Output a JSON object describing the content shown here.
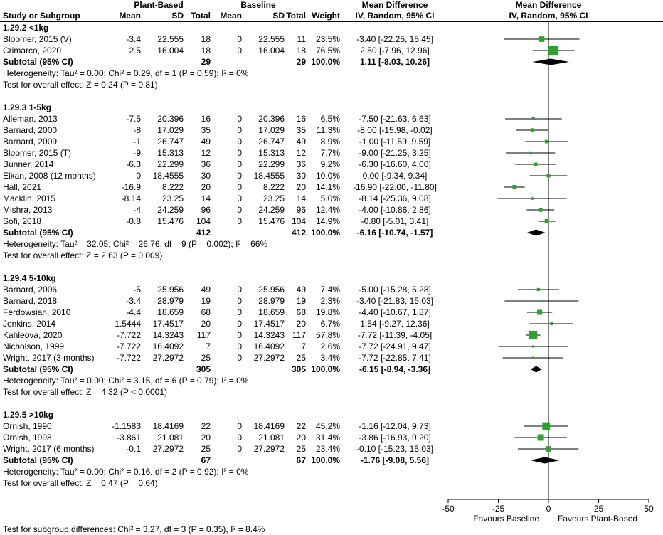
{
  "header": {
    "study": "Study or Subgroup",
    "plant_group": "Plant-Based",
    "baseline_group": "Baseline",
    "mean": "Mean",
    "sd": "SD",
    "total": "Total",
    "weight": "Weight",
    "md": "Mean Difference",
    "ci_method": "IV, Random, 95% CI"
  },
  "colors": {
    "marker": "#2CA32C",
    "diamond": "#000000",
    "line": "#000000"
  },
  "chart_data": {
    "type": "forest",
    "x_axis": {
      "min": -50,
      "max": 50,
      "ticks": [
        -50,
        -25,
        0,
        25,
        50
      ]
    },
    "favours": {
      "left": "Favours Baseline",
      "right": "Favours Plant-Based"
    },
    "footer": "Test for subgroup differences: Chi² = 3.27, df = 3 (P = 0.35), I² = 8.4%",
    "groups": [
      {
        "heading": "1.29.2 <1kg",
        "studies": [
          {
            "study": "Bloomer, 2015 (V)",
            "mean1": "-3.4",
            "sd1": "22.555",
            "total1": "18",
            "mean2": "0",
            "sd2": "22.555",
            "total2": "11",
            "weight": "23.5%",
            "ci": "-3.40 [-22.25, 15.45]",
            "effect": -3.4,
            "low": -22.25,
            "high": 15.45
          },
          {
            "study": "Crimarco, 2020",
            "mean1": "2.5",
            "sd1": "16.004",
            "total1": "18",
            "mean2": "0",
            "sd2": "16.004",
            "total2": "18",
            "weight": "76.5%",
            "ci": "2.50 [-7.96, 12.96]",
            "effect": 2.5,
            "low": -7.96,
            "high": 12.96
          }
        ],
        "subtotal": {
          "label": "Subtotal (95% CI)",
          "total1": "29",
          "total2": "29",
          "weight": "100.0%",
          "ci": "1.11 [-8.03, 10.26]",
          "effect": 1.11,
          "low": -8.03,
          "high": 10.26
        },
        "heterogeneity": "Heterogeneity: Tau² = 0.00; Chi² = 0.29, df = 1 (P = 0.59); I² = 0%",
        "overall": "Test for overall effect: Z = 0.24 (P = 0.81)"
      },
      {
        "heading": "1.29.3 1-5kg",
        "studies": [
          {
            "study": "Alleman, 2013",
            "mean1": "-7.5",
            "sd1": "20.396",
            "total1": "16",
            "mean2": "0",
            "sd2": "20.396",
            "total2": "16",
            "weight": "6.5%",
            "ci": "-7.50 [-21.63, 6.63]",
            "effect": -7.5,
            "low": -21.63,
            "high": 6.63
          },
          {
            "study": "Barnard, 2000",
            "mean1": "-8",
            "sd1": "17.029",
            "total1": "35",
            "mean2": "0",
            "sd2": "17.029",
            "total2": "35",
            "weight": "11.3%",
            "ci": "-8.00 [-15.98, -0.02]",
            "effect": -8,
            "low": -15.98,
            "high": -0.02
          },
          {
            "study": "Barnard, 2009",
            "mean1": "-1",
            "sd1": "26.747",
            "total1": "49",
            "mean2": "0",
            "sd2": "26.747",
            "total2": "49",
            "weight": "8.9%",
            "ci": "-1.00 [-11.59, 9.59]",
            "effect": -1,
            "low": -11.59,
            "high": 9.59
          },
          {
            "study": "Bloomer, 2015 (T)",
            "mean1": "-9",
            "sd1": "15.313",
            "total1": "12",
            "mean2": "0",
            "sd2": "15.313",
            "total2": "12",
            "weight": "7.7%",
            "ci": "-9.00 [-21.25, 3.25]",
            "effect": -9,
            "low": -21.25,
            "high": 3.25
          },
          {
            "study": "Bunner, 2014",
            "mean1": "-6.3",
            "sd1": "22.299",
            "total1": "36",
            "mean2": "0",
            "sd2": "22.299",
            "total2": "36",
            "weight": "9.2%",
            "ci": "-6.30 [-16.60, 4.00]",
            "effect": -6.3,
            "low": -16.6,
            "high": 4
          },
          {
            "study": "Elkan, 2008 (12 months)",
            "mean1": "0",
            "sd1": "18.4555",
            "total1": "30",
            "mean2": "0",
            "sd2": "18.4555",
            "total2": "30",
            "weight": "10.0%",
            "ci": "0.00 [-9.34, 9.34]",
            "effect": 0,
            "low": -9.34,
            "high": 9.34
          },
          {
            "study": "Hall, 2021",
            "mean1": "-16.9",
            "sd1": "8.222",
            "total1": "20",
            "mean2": "0",
            "sd2": "8.222",
            "total2": "20",
            "weight": "14.1%",
            "ci": "-16.90 [-22.00, -11.80]",
            "effect": -16.9,
            "low": -22,
            "high": -11.8
          },
          {
            "study": "Macklin, 2015",
            "mean1": "-8.14",
            "sd1": "23.25",
            "total1": "14",
            "mean2": "0",
            "sd2": "23.25",
            "total2": "14",
            "weight": "5.0%",
            "ci": "-8.14 [-25.36, 9.08]",
            "effect": -8.14,
            "low": -25.36,
            "high": 9.08
          },
          {
            "study": "Mishra, 2013",
            "mean1": "-4",
            "sd1": "24.259",
            "total1": "96",
            "mean2": "0",
            "sd2": "24.259",
            "total2": "96",
            "weight": "12.4%",
            "ci": "-4.00 [-10.86, 2.86]",
            "effect": -4,
            "low": -10.86,
            "high": 2.86
          },
          {
            "study": "Sofi, 2018",
            "mean1": "-0.8",
            "sd1": "15.476",
            "total1": "104",
            "mean2": "0",
            "sd2": "15.476",
            "total2": "104",
            "weight": "14.9%",
            "ci": "-0.80 [-5.01, 3.41]",
            "effect": -0.8,
            "low": -5.01,
            "high": 3.41
          }
        ],
        "subtotal": {
          "label": "Subtotal (95% CI)",
          "total1": "412",
          "total2": "412",
          "weight": "100.0%",
          "ci": "-6.16 [-10.74, -1.57]",
          "effect": -6.16,
          "low": -10.74,
          "high": -1.57
        },
        "heterogeneity": "Heterogeneity: Tau² = 32.05; Chi² = 26.76, df = 9 (P = 0.002); I² = 66%",
        "overall": "Test for overall effect: Z = 2.63 (P = 0.009)"
      },
      {
        "heading": "1.29.4 5-10kg",
        "studies": [
          {
            "study": "Barnard, 2006",
            "mean1": "-5",
            "sd1": "25.956",
            "total1": "49",
            "mean2": "0",
            "sd2": "25.956",
            "total2": "49",
            "weight": "7.4%",
            "ci": "-5.00 [-15.28, 5.28]",
            "effect": -5,
            "low": -15.28,
            "high": 5.28
          },
          {
            "study": "Barnard, 2018",
            "mean1": "-3.4",
            "sd1": "28.979",
            "total1": "19",
            "mean2": "0",
            "sd2": "28.979",
            "total2": "19",
            "weight": "2.3%",
            "ci": "-3.40 [-21.83, 15.03]",
            "effect": -3.4,
            "low": -21.83,
            "high": 15.03
          },
          {
            "study": "Ferdowsian, 2010",
            "mean1": "-4.4",
            "sd1": "18.659",
            "total1": "68",
            "mean2": "0",
            "sd2": "18.659",
            "total2": "68",
            "weight": "19.8%",
            "ci": "-4.40 [-10.67, 1.87]",
            "effect": -4.4,
            "low": -10.67,
            "high": 1.87
          },
          {
            "study": "Jenkins, 2014",
            "mean1": "1.5444",
            "sd1": "17.4517",
            "total1": "20",
            "mean2": "0",
            "sd2": "17.4517",
            "total2": "20",
            "weight": "6.7%",
            "ci": "1.54 [-9.27, 12.36]",
            "effect": 1.54,
            "low": -9.27,
            "high": 12.36
          },
          {
            "study": "Kahleova, 2020",
            "mean1": "-7.722",
            "sd1": "14.3243",
            "total1": "117",
            "mean2": "0",
            "sd2": "14.3243",
            "total2": "117",
            "weight": "57.8%",
            "ci": "-7.72 [-11.39, -4.05]",
            "effect": -7.72,
            "low": -11.39,
            "high": -4.05
          },
          {
            "study": "Nicholson, 1999",
            "mean1": "-7.722",
            "sd1": "16.4092",
            "total1": "7",
            "mean2": "0",
            "sd2": "16.4092",
            "total2": "7",
            "weight": "2.6%",
            "ci": "-7.72 [-24.91, 9.47]",
            "effect": -7.72,
            "low": -24.91,
            "high": 9.47
          },
          {
            "study": "Wright, 2017 (3 months)",
            "mean1": "-7.722",
            "sd1": "27.2972",
            "total1": "25",
            "mean2": "0",
            "sd2": "27.2972",
            "total2": "25",
            "weight": "3.4%",
            "ci": "-7.72 [-22.85, 7.41]",
            "effect": -7.72,
            "low": -22.85,
            "high": 7.41
          }
        ],
        "subtotal": {
          "label": "Subtotal (95% CI)",
          "total1": "305",
          "total2": "305",
          "weight": "100.0%",
          "ci": "-6.15 [-8.94, -3.36]",
          "effect": -6.15,
          "low": -8.94,
          "high": -3.36
        },
        "heterogeneity": "Heterogeneity: Tau² = 0.00; Chi² = 3.15, df = 6 (P = 0.79); I² = 0%",
        "overall": "Test for overall effect: Z = 4.32 (P < 0.0001)"
      },
      {
        "heading": "1.29.5 >10kg",
        "studies": [
          {
            "study": "Ornish, 1990",
            "mean1": "-1.1583",
            "sd1": "18.4169",
            "total1": "22",
            "mean2": "0",
            "sd2": "18.4169",
            "total2": "22",
            "weight": "45.2%",
            "ci": "-1.16 [-12.04, 9.73]",
            "effect": -1.16,
            "low": -12.04,
            "high": 9.73
          },
          {
            "study": "Ornish, 1998",
            "mean1": "-3.861",
            "sd1": "21.081",
            "total1": "20",
            "mean2": "0",
            "sd2": "21.081",
            "total2": "20",
            "weight": "31.4%",
            "ci": "-3.86 [-16.93, 9.20]",
            "effect": -3.86,
            "low": -16.93,
            "high": 9.2
          },
          {
            "study": "Wright, 2017 (6 months)",
            "mean1": "-0.1",
            "sd1": "27.2972",
            "total1": "25",
            "mean2": "0",
            "sd2": "27.2972",
            "total2": "25",
            "weight": "23.4%",
            "ci": "-0.10 [-15.23, 15.03]",
            "effect": -0.1,
            "low": -15.23,
            "high": 15.03
          }
        ],
        "subtotal": {
          "label": "Subtotal (95% CI)",
          "total1": "67",
          "total2": "67",
          "weight": "100.0%",
          "ci": "-1.76 [-9.08, 5.56]",
          "effect": -1.76,
          "low": -9.08,
          "high": 5.56
        },
        "heterogeneity": "Heterogeneity: Tau² = 0.00; Chi² = 0.16, df = 2 (P = 0.92); I² = 0%",
        "overall": "Test for overall effect: Z = 0.47 (P = 0.64)"
      }
    ]
  }
}
